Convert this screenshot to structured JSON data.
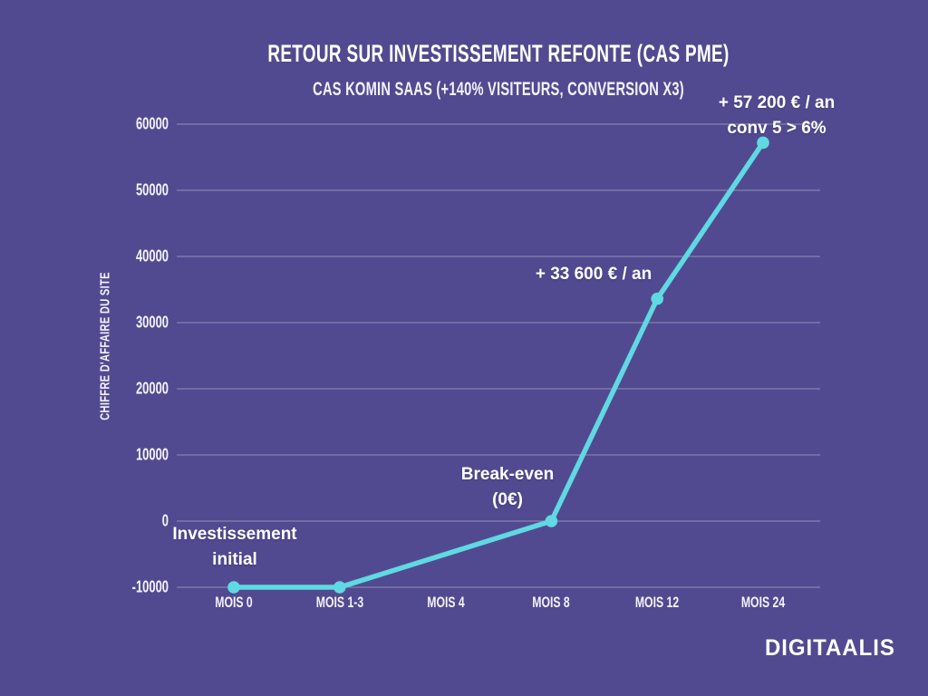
{
  "branding": {
    "logo_text": "DIGITAALIS"
  },
  "chart_data": {
    "type": "line",
    "title": "RETOUR SUR INVESTISSEMENT REFONTE (CAS PME)",
    "subtitle": "CAS KOMIN SAAS (+140% VISITEURS, CONVERSION X3)",
    "xlabel": "",
    "ylabel": "CHIFFRE D'AFFAIRE DU SITE",
    "categories": [
      "MOIS 0",
      "MOIS 1-3",
      "MOIS 4",
      "MOIS 8",
      "MOIS 12",
      "MOIS 24"
    ],
    "series": [
      {
        "name": "Chiffre d'affaire du site",
        "values": [
          -10000,
          -10000,
          -5000,
          0,
          33600,
          57200
        ],
        "markers": [
          true,
          true,
          false,
          true,
          true,
          true
        ]
      }
    ],
    "y_ticks": [
      -10000,
      0,
      10000,
      20000,
      30000,
      40000,
      50000,
      60000
    ],
    "ylim": [
      -10000,
      60000
    ],
    "grid": true,
    "legend_position": "none",
    "colors": {
      "background": "#524a90",
      "line": "#5fd9e2",
      "text": "#ffffff"
    },
    "annotations": [
      {
        "text": "Investissement\ninitial",
        "target": "MOIS 0"
      },
      {
        "text": "Break-even\n(0€)",
        "target": "MOIS 8"
      },
      {
        "text": "+ 33 600 € / an",
        "target": "MOIS 12"
      },
      {
        "text": "+ 57 200 € / an\nconv 5 > 6%",
        "target": "MOIS 24"
      }
    ]
  }
}
